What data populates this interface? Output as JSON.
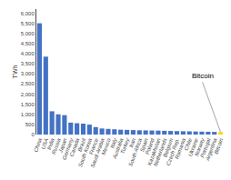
{
  "chart_data": {
    "type": "bar",
    "categories": [
      "China",
      "USA",
      "India",
      "Russia",
      "Japan",
      "Germany",
      "Canada",
      "Brazil",
      "South Korea",
      "France",
      "Saudi Arabia",
      "Mexico",
      "Italy",
      "Australia",
      "Turkey",
      "Iran",
      "South Africa",
      "Spain",
      "Poland",
      "Kazakhstan",
      "Netherlands",
      "Belgium",
      "Czech Rep.",
      "Romania",
      "Chile",
      "Ukraine",
      "Norway",
      "Portugal",
      "Argentina",
      "Bitcoin"
    ],
    "values": [
      5500,
      3850,
      1150,
      1000,
      960,
      590,
      560,
      540,
      490,
      370,
      300,
      280,
      260,
      240,
      230,
      220,
      210,
      205,
      200,
      195,
      185,
      178,
      170,
      165,
      158,
      150,
      143,
      138,
      130,
      120
    ],
    "colors": [
      "#4472C4",
      "#4472C4",
      "#4472C4",
      "#4472C4",
      "#4472C4",
      "#4472C4",
      "#4472C4",
      "#4472C4",
      "#4472C4",
      "#4472C4",
      "#4472C4",
      "#4472C4",
      "#4472C4",
      "#4472C4",
      "#4472C4",
      "#4472C4",
      "#4472C4",
      "#4472C4",
      "#4472C4",
      "#4472C4",
      "#4472C4",
      "#4472C4",
      "#4472C4",
      "#4472C4",
      "#4472C4",
      "#4472C4",
      "#4472C4",
      "#4472C4",
      "#4472C4",
      "#FFD700"
    ],
    "ylabel": "TWh",
    "ylim": [
      0,
      6200
    ],
    "yticks": [
      0,
      500,
      {
        "value": 1000,
        "label": "1,000"
      },
      {
        "value": 1500,
        "label": "1,500"
      },
      {
        "value": 2000,
        "label": "2,000"
      },
      {
        "value": 2500,
        "label": "2,500"
      },
      {
        "value": 3000,
        "label": "3,000"
      },
      {
        "value": 3500,
        "label": "3,500"
      },
      {
        "value": 4000,
        "label": "4,000"
      },
      {
        "value": 4500,
        "label": "4,500"
      },
      {
        "value": 5000,
        "label": "5,000"
      },
      {
        "value": 5500,
        "label": "5,500"
      },
      {
        "value": 6000,
        "label": "6,000"
      }
    ],
    "grid": false,
    "annotations": [
      {
        "text": "Bitcoin",
        "category": "Bitcoin"
      }
    ]
  }
}
